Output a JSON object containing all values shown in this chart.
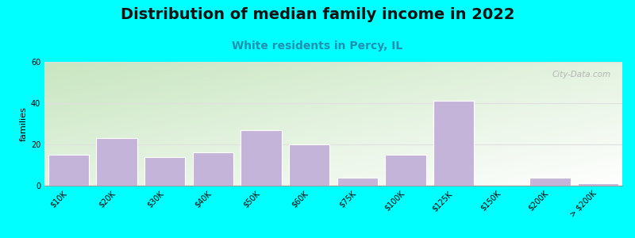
{
  "title": "Distribution of median family income in 2022",
  "subtitle": "White residents in Percy, IL",
  "ylabel": "families",
  "categories": [
    "$10K",
    "$20K",
    "$30K",
    "$40K",
    "$50K",
    "$60K",
    "$75K",
    "$100K",
    "$125K",
    "$150K",
    "$200K",
    "> $200K"
  ],
  "values": [
    15,
    23,
    14,
    16,
    27,
    20,
    4,
    15,
    41,
    0,
    4,
    1
  ],
  "bar_color": "#c5b4d9",
  "bar_edge_color": "#c5b4d9",
  "background_color": "#00ffff",
  "plot_bg_color_topleft": "#c8e6c0",
  "plot_bg_color_bottomright": "#ffffff",
  "title_fontsize": 14,
  "subtitle_fontsize": 10,
  "subtitle_color": "#2090b0",
  "ylabel_fontsize": 8,
  "tick_fontsize": 7,
  "ylim": [
    0,
    60
  ],
  "yticks": [
    0,
    20,
    40,
    60
  ],
  "watermark": "City-Data.com",
  "watermark_color": "#aaaaaa",
  "grid_color": "#e0e0e0"
}
